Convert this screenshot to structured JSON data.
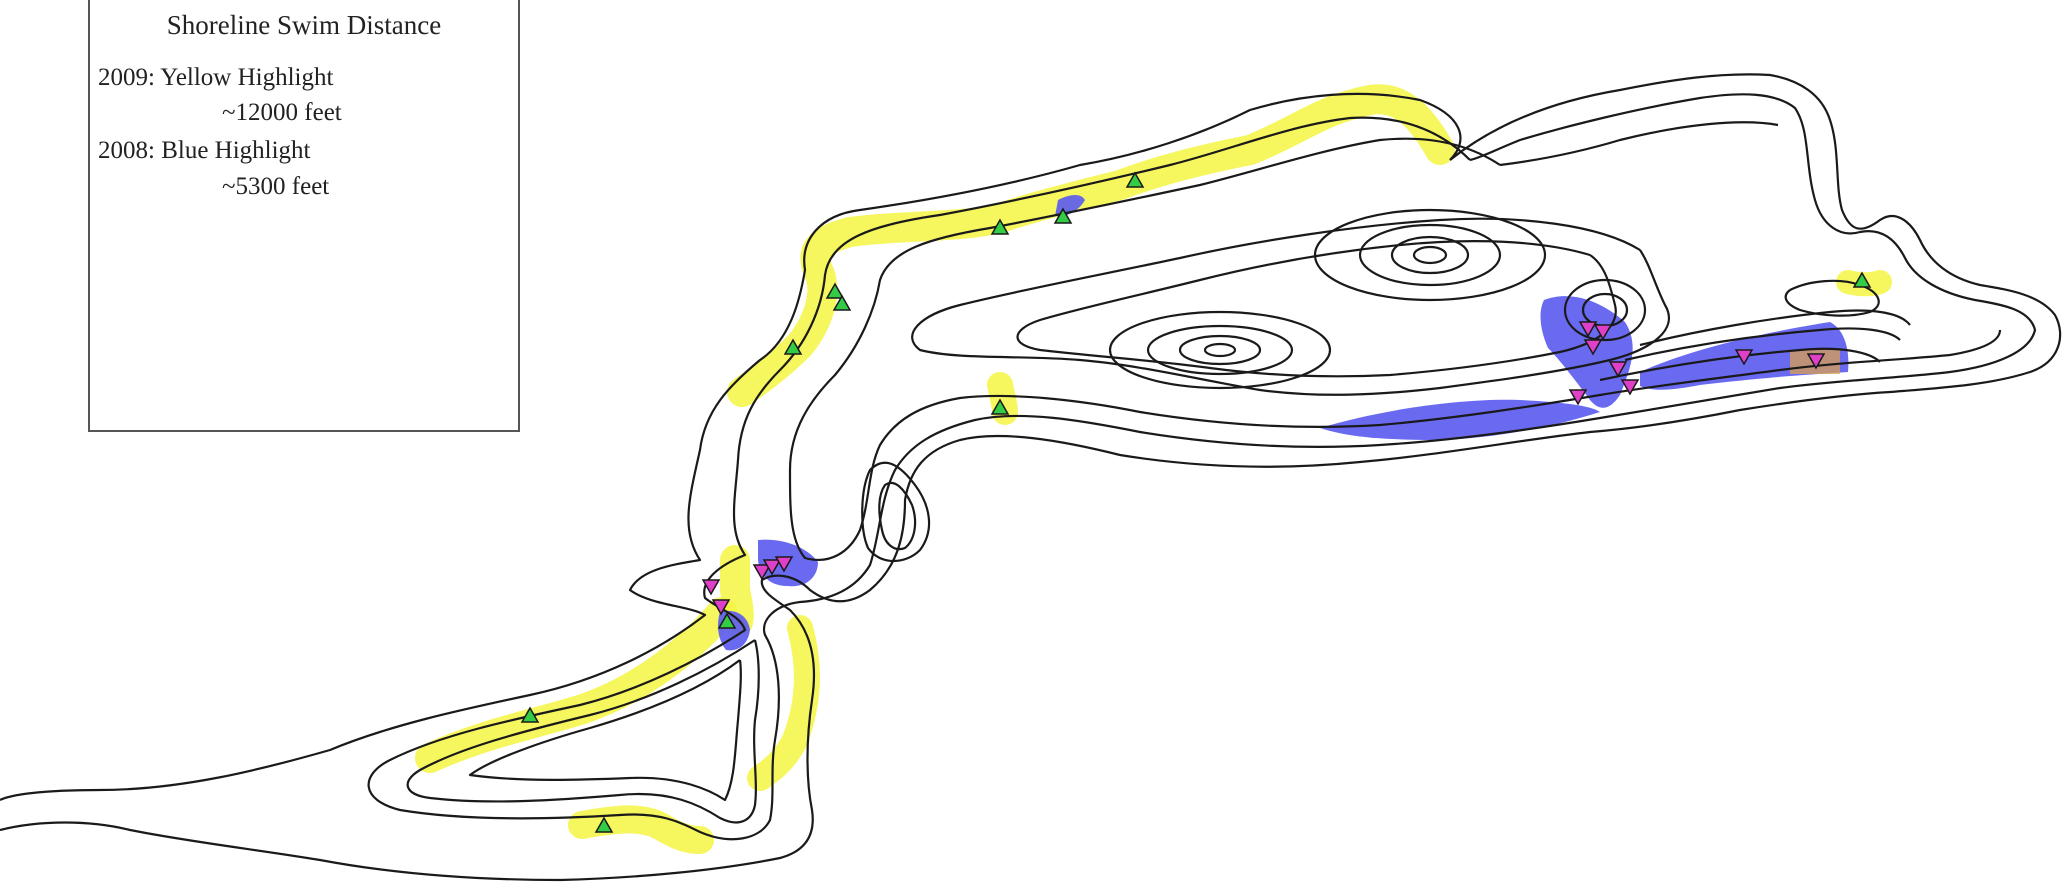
{
  "legend": {
    "title": "Shoreline Swim Distance",
    "line_2009": "2009: Yellow Highlight",
    "dist_2009": "~12000 feet",
    "line_2008": "2008: Blue Highlight",
    "dist_2008": "~5300 feet"
  },
  "colors": {
    "highlight_2009": "#f5f542",
    "highlight_2008": "#5a5af0",
    "contour": "#1a1a1a",
    "marker_up": "#33cc44",
    "marker_down": "#e040c8"
  },
  "markers": {
    "up_icon": "green-triangle-icon",
    "down_icon": "magenta-inverted-triangle-icon"
  }
}
